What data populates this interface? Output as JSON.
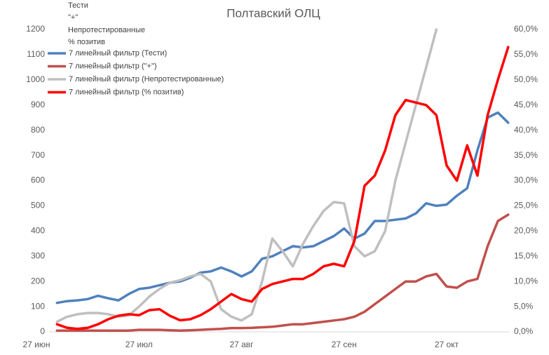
{
  "chart_data": {
    "type": "line",
    "title": "Полтавский ОЛЦ",
    "categories": [
      "27 июн",
      null,
      null,
      null,
      null,
      null,
      null,
      null,
      null,
      null,
      "27 июл",
      null,
      null,
      null,
      null,
      null,
      null,
      null,
      null,
      null,
      "27 авг",
      null,
      null,
      null,
      null,
      null,
      null,
      null,
      null,
      null,
      "27 сен",
      null,
      null,
      null,
      null,
      null,
      null,
      null,
      null,
      null,
      "27 окт",
      null,
      null,
      null,
      null,
      null,
      null
    ],
    "series": [
      {
        "name": "Тести",
        "legend_label": "7 линейный фильтр (Тести)",
        "color": "#4f81bd",
        "values": [
          null,
          null,
          115,
          122,
          125,
          130,
          143,
          133,
          125,
          150,
          170,
          175,
          185,
          195,
          200,
          215,
          235,
          240,
          255,
          240,
          220,
          240,
          290,
          300,
          320,
          340,
          335,
          340,
          360,
          380,
          410,
          370,
          390,
          440,
          440,
          445,
          450,
          470,
          510,
          500,
          505,
          540,
          570,
          720,
          850,
          870,
          830
        ]
      },
      {
        "name": "\"+\"",
        "legend_label": "7 линейный фильтр (\"+\")",
        "color": "#c0504d",
        "values": [
          null,
          null,
          5,
          5,
          5,
          5,
          5,
          5,
          5,
          5,
          8,
          8,
          8,
          6,
          5,
          6,
          8,
          10,
          12,
          15,
          15,
          16,
          18,
          20,
          25,
          30,
          30,
          35,
          40,
          45,
          50,
          60,
          80,
          110,
          140,
          170,
          200,
          200,
          220,
          230,
          180,
          175,
          200,
          210,
          340,
          440,
          465
        ]
      },
      {
        "name": "Непротестированные",
        "legend_label": "7 линейный фильтр (Непротестированные)",
        "color": "#bfbfbf",
        "values": [
          null,
          null,
          40,
          60,
          70,
          75,
          75,
          70,
          60,
          65,
          100,
          140,
          170,
          195,
          205,
          220,
          230,
          200,
          90,
          60,
          45,
          70,
          200,
          370,
          320,
          260,
          350,
          420,
          480,
          515,
          510,
          340,
          300,
          320,
          400,
          600,
          750,
          900,
          1050,
          1200,
          null,
          null,
          null,
          null,
          null,
          null,
          null
        ]
      },
      {
        "name": "% позитив",
        "legend_label": "7 линейный фильтр (% позитив)",
        "color": "#ff0000",
        "axis": "y2",
        "values": [
          null,
          null,
          1.5,
          0.8,
          0.6,
          0.8,
          1.5,
          2.5,
          3.2,
          3.5,
          3.3,
          4.3,
          4.5,
          3.2,
          2.3,
          2.5,
          3.3,
          4.5,
          6,
          7.5,
          6.5,
          6,
          8.5,
          9.5,
          10,
          10.5,
          10.5,
          11.5,
          13,
          13.5,
          13,
          18,
          29,
          31,
          36,
          43,
          46,
          45.5,
          45,
          43,
          33,
          30,
          37,
          31,
          43,
          50,
          56.5
        ]
      }
    ],
    "ylim": [
      0,
      1200
    ],
    "yticks": [
      0,
      100,
      200,
      300,
      400,
      500,
      600,
      700,
      800,
      900,
      1000,
      1100,
      1200
    ],
    "y2lim": [
      0,
      60
    ],
    "y2ticks": [
      {
        "value": 0,
        "label": "0,0%"
      },
      {
        "value": 5,
        "label": "5,0%"
      },
      {
        "value": 10,
        "label": "10,0%"
      },
      {
        "value": 15,
        "label": "15,0%"
      },
      {
        "value": 20,
        "label": "20,0%"
      },
      {
        "value": 25,
        "label": "25,0%"
      },
      {
        "value": 30,
        "label": "30,0%"
      },
      {
        "value": 35,
        "label": "35,0%"
      },
      {
        "value": 40,
        "label": "40,0%"
      },
      {
        "value": 45,
        "label": "45,0%"
      },
      {
        "value": 50,
        "label": "50,0%"
      },
      {
        "value": 55,
        "label": "55,0%"
      },
      {
        "value": 60,
        "label": "60,0%"
      }
    ],
    "grid": false
  }
}
